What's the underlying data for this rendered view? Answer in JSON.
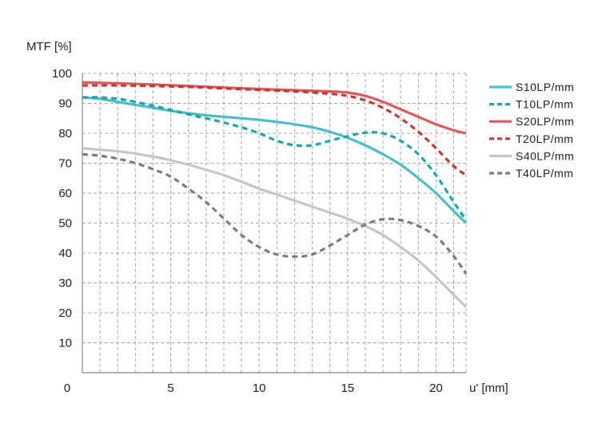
{
  "chart_data": {
    "type": "line",
    "ylabel": "MTF [%]",
    "xlabel": "u' [mm]",
    "xlim": [
      0,
      21.7
    ],
    "ylim": [
      0,
      100
    ],
    "x_ticks": [
      0,
      5,
      10,
      15,
      20
    ],
    "y_ticks": [
      10,
      20,
      30,
      40,
      50,
      60,
      70,
      80,
      90,
      100
    ],
    "grid": true,
    "legend_position": "right",
    "series": [
      {
        "name": "S10LP/mm",
        "color": "#4bbfc4",
        "dashed": false,
        "x": [
          0,
          1,
          2,
          3,
          4,
          5,
          6,
          7,
          8,
          9,
          10,
          11,
          12,
          13,
          14,
          15,
          16,
          17,
          18,
          19,
          20,
          21,
          21.7
        ],
        "y": [
          92,
          91.5,
          90.5,
          89.5,
          88.5,
          87.5,
          86.7,
          86,
          85.5,
          85,
          84.5,
          83.8,
          83,
          82,
          80.5,
          78.5,
          76,
          73,
          69.5,
          65,
          60,
          54,
          50
        ]
      },
      {
        "name": "T10LP/mm",
        "color": "#1aa6ad",
        "dashed": true,
        "x": [
          0,
          1,
          2,
          3,
          4,
          5,
          6,
          7,
          8,
          9,
          10,
          11,
          12,
          13,
          14,
          15,
          16,
          17,
          18,
          19,
          20,
          21,
          21.7
        ],
        "y": [
          92,
          92,
          91.5,
          90.5,
          89.2,
          87.8,
          86.3,
          85,
          83.6,
          82,
          80,
          77.5,
          76,
          76,
          77.5,
          79,
          80.2,
          80,
          77.5,
          73,
          66,
          57,
          51
        ]
      },
      {
        "name": "S20LP/mm",
        "color": "#dd5a58",
        "dashed": false,
        "x": [
          0,
          2,
          4,
          6,
          8,
          10,
          12,
          14,
          15,
          16,
          17,
          18,
          19,
          20,
          21,
          21.7
        ],
        "y": [
          97,
          96.7,
          96.3,
          95.8,
          95.3,
          94.8,
          94.4,
          94,
          93.6,
          92.5,
          90.5,
          88,
          85.5,
          83,
          81,
          80
        ]
      },
      {
        "name": "T20LP/mm",
        "color": "#c6373a",
        "dashed": true,
        "x": [
          0,
          2,
          4,
          6,
          8,
          10,
          12,
          14,
          15,
          16,
          17,
          18,
          19,
          20,
          21,
          21.7
        ],
        "y": [
          96,
          96,
          95.8,
          95.5,
          95,
          94.5,
          94,
          93.2,
          92.5,
          91,
          88.5,
          85,
          80.5,
          75,
          69,
          66
        ]
      },
      {
        "name": "S40LP/mm",
        "color": "#c6c6c6",
        "dashed": false,
        "x": [
          0,
          1,
          2,
          3,
          4,
          5,
          6,
          7,
          8,
          9,
          10,
          11,
          12,
          13,
          14,
          15,
          16,
          17,
          18,
          19,
          20,
          21,
          21.7
        ],
        "y": [
          75,
          74.5,
          74,
          73.2,
          72.2,
          71,
          69.5,
          67.8,
          66,
          63.8,
          61.5,
          59.5,
          57.5,
          55.5,
          53.5,
          51.5,
          49,
          46,
          42,
          37.5,
          32,
          26,
          22
        ]
      },
      {
        "name": "T40LP/mm",
        "color": "#7d7d7d",
        "dashed": true,
        "x": [
          0,
          1,
          2,
          3,
          4,
          5,
          6,
          7,
          8,
          9,
          10,
          11,
          12,
          13,
          14,
          15,
          16,
          17,
          18,
          19,
          20,
          21,
          21.7
        ],
        "y": [
          73,
          72.5,
          71.5,
          70,
          68,
          65.5,
          61.5,
          57,
          51.5,
          46,
          42,
          39.5,
          38.8,
          39.5,
          42.5,
          46,
          49.5,
          51.3,
          51,
          49,
          45.5,
          39,
          33
        ]
      }
    ]
  }
}
